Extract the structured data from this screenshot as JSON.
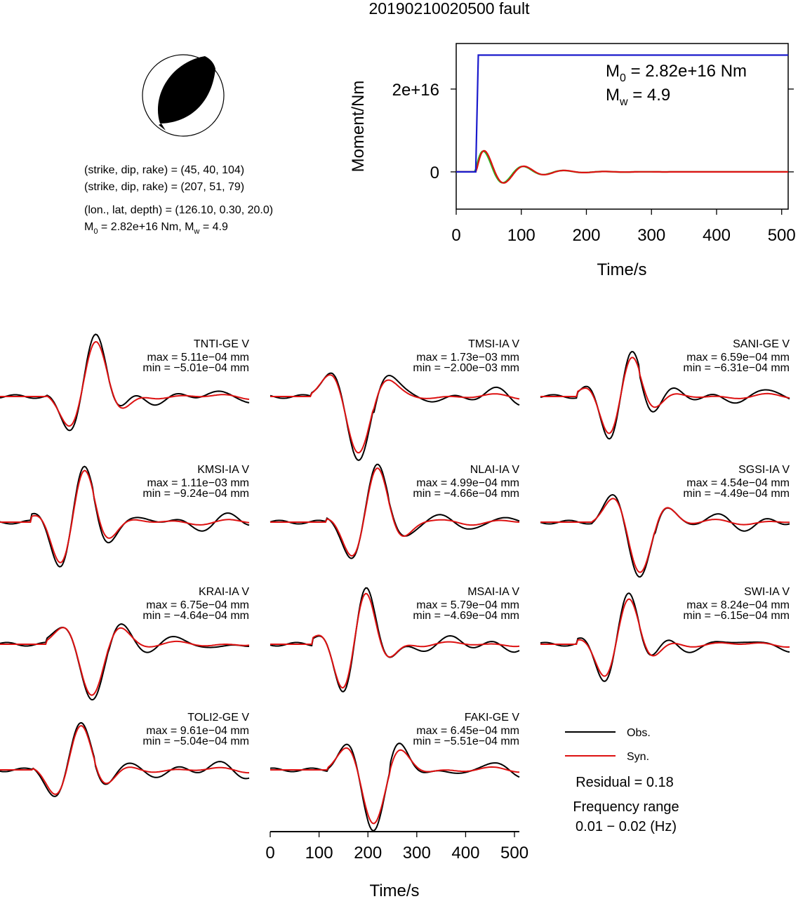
{
  "title": "20190210020500 fault",
  "mechanism": {
    "line1": "(strike, dip, rake) = (45, 40, 104)",
    "line2": "(strike, dip, rake) = (207, 51, 79)",
    "line3": "(lon., lat, depth) = (126.10, 0.30, 20.0)",
    "line4_prefix": "M",
    "line4_sub": "0",
    "line4_mid": " = 2.82e+16 Nm, M",
    "line4_sub2": "w",
    "line4_end": " = 4.9"
  },
  "colors": {
    "obs": "#000000",
    "syn": "#dd1111",
    "moment": "#1a1acc",
    "rate_green": "#22bb22"
  },
  "moment_chart": {
    "type": "line",
    "ylabel": "Moment/Nm",
    "xlabel": "Time/s",
    "xlim": [
      0,
      510
    ],
    "ylim": [
      -9000000000000000.0,
      3.1e+16
    ],
    "xticks": [
      "0",
      "100",
      "200",
      "300",
      "400",
      "500"
    ],
    "xtick_values": [
      0,
      100,
      200,
      300,
      400,
      500
    ],
    "yticks": [
      "0",
      "2e+16"
    ],
    "ytick_values": [
      0,
      2e+16
    ],
    "legend_m0_prefix": "M",
    "legend_m0_sub": "0",
    "legend_m0_text": " = 2.82e+16 Nm",
    "legend_mw_prefix": "M",
    "legend_mw_sub": "w",
    "legend_mw_text": " = 4.9",
    "cumulative_moment": {
      "x": [
        0,
        30,
        34,
        510
      ],
      "y": [
        0,
        0,
        2.82e+16,
        2.82e+16
      ]
    }
  },
  "chart_data": {
    "type": "line",
    "x_axis": {
      "label": "Time/s",
      "ticks": [
        "0",
        "100",
        "200",
        "300",
        "400",
        "500"
      ],
      "tick_values": [
        0,
        100,
        200,
        300,
        400,
        500
      ],
      "xlim": [
        0,
        510
      ]
    },
    "stations": [
      {
        "name": "TNTI-GE V",
        "max": "max = 5.11e−04 mm",
        "min": "min = −5.01e−04 mm",
        "seed": 1,
        "scale": 1.0
      },
      {
        "name": "TMSI-IA V",
        "max": "max = 1.73e−03 mm",
        "min": "min = −2.00e−03 mm",
        "seed": 2,
        "scale": 1.0
      },
      {
        "name": "SANI-GE V",
        "max": "max = 6.59e−04 mm",
        "min": "min = −6.31e−04 mm",
        "seed": 3,
        "scale": 0.8
      },
      {
        "name": "KMSI-IA V",
        "max": "max = 1.11e−03 mm",
        "min": "min = −9.24e−04 mm",
        "seed": 4,
        "scale": 1.0
      },
      {
        "name": "NLAI-IA V",
        "max": "max = 4.99e−04 mm",
        "min": "min = −4.66e−04 mm",
        "seed": 5,
        "scale": 1.0
      },
      {
        "name": "SGSI-IA V",
        "max": "max = 4.54e−04 mm",
        "min": "min = −4.49e−04 mm",
        "seed": 6,
        "scale": 0.9
      },
      {
        "name": "KRAI-IA V",
        "max": "max = 6.75e−04 mm",
        "min": "min = −4.64e−04 mm",
        "seed": 7,
        "scale": 0.9
      },
      {
        "name": "MSAI-IA V",
        "max": "max = 5.79e−04 mm",
        "min": "min = −4.69e−04 mm",
        "seed": 8,
        "scale": 1.0
      },
      {
        "name": "SWI-IA V",
        "max": "max = 8.24e−04 mm",
        "min": "min = −6.15e−04 mm",
        "seed": 9,
        "scale": 0.85
      },
      {
        "name": "TOLI2-GE V",
        "max": "max = 9.61e−04 mm",
        "min": "min = −5.04e−04 mm",
        "seed": 10,
        "scale": 0.8
      },
      {
        "name": "FAKI-GE V",
        "max": "max = 6.45e−04 mm",
        "min": "min = −5.51e−04 mm",
        "seed": 11,
        "scale": 0.95
      }
    ]
  },
  "legend": {
    "obs_label": "Obs.",
    "syn_label": "Syn.",
    "residual": "Residual = 0.18",
    "freq_title": "Frequency range",
    "freq_range": "0.01 − 0.02 (Hz)"
  }
}
